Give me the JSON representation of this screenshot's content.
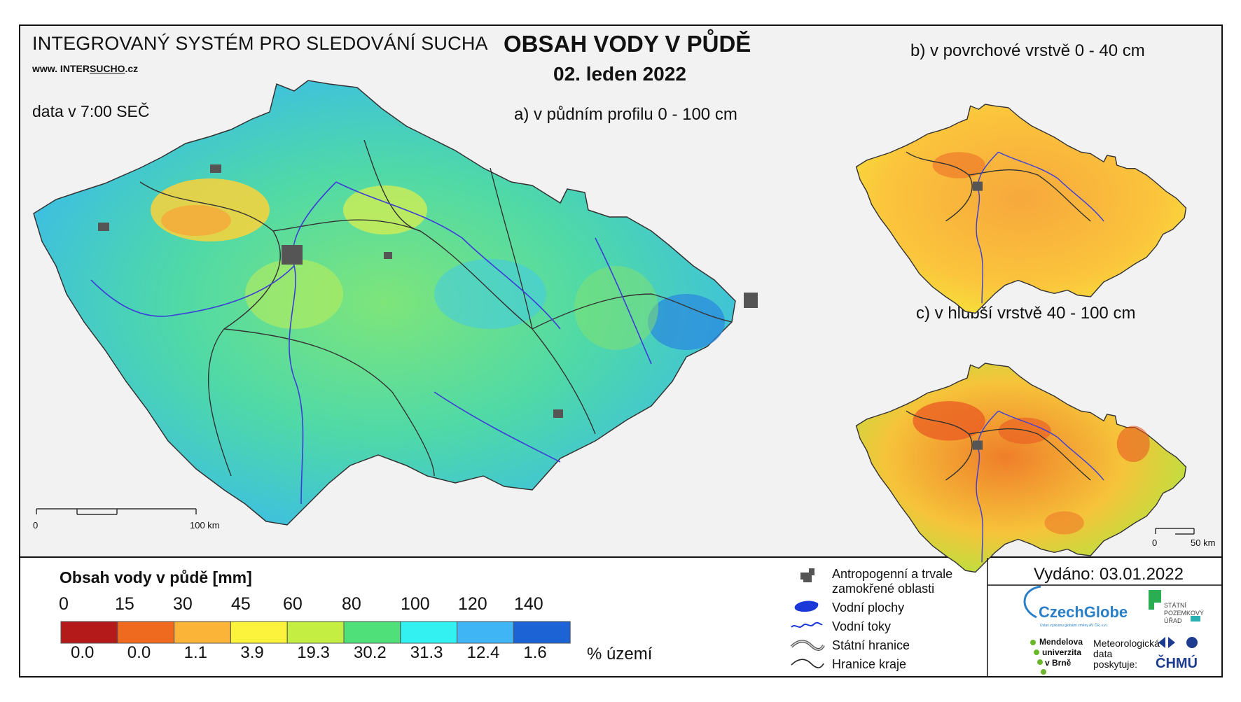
{
  "header": {
    "system": "INTEGROVANÝ SYSTÉM PRO SLEDOVÁNÍ SUCHA",
    "url_prefix": "www. INTER",
    "url_mid": "SUCHO",
    "url_suffix": ".cz",
    "data_time": "data v 7:00 SEČ",
    "title": "OBSAH VODY V PŮDĚ",
    "date": "02. leden 2022"
  },
  "panels": {
    "a": "a) v půdním profilu 0 - 100 cm",
    "b": "b) v povrchové vrstvě 0 - 40 cm",
    "c": "c) v hlubší vrstvě 40 - 100 cm"
  },
  "scale": {
    "main_zero": "0",
    "main_end": "100 km",
    "small_zero": "0",
    "small_end": "50 km"
  },
  "legend": {
    "title": "Obsah vody v půdě  [mm]",
    "ticks": [
      "0",
      "15",
      "30",
      "45",
      "60",
      "80",
      "100",
      "120",
      "140"
    ],
    "colors": [
      "#b41a1a",
      "#ef6a1f",
      "#fbb438",
      "#fcf43c",
      "#c4ef42",
      "#4fe07a",
      "#33f1f1",
      "#3fb5f6",
      "#1c63d6"
    ],
    "percentages": [
      "0.0",
      "0.0",
      "1.1",
      "3.9",
      "19.3",
      "30.2",
      "31.3",
      "12.4",
      "1.6"
    ],
    "percent_label": "% území"
  },
  "map_legend": {
    "anthropogenic": "Antropogenní a trvale",
    "anthropogenic2": "zamokřené oblasti",
    "water_bodies": "Vodní plochy",
    "rivers": "Vodní toky",
    "state_border": "Státní hranice",
    "region_border": "Hranice kraje"
  },
  "issued": "Vydáno: 03.01.2022",
  "logos": {
    "czechglobe": "CzechGlobe",
    "czechglobe_sub": "Ústav výzkumu globální změny AV ČR, v.v.i.",
    "spu1": "STÁTNÍ",
    "spu2": "POZEMKOVÝ",
    "spu3": "ÚŘAD",
    "mendel1": "Mendelova",
    "mendel2": "univerzita",
    "mendel3": "v Brně",
    "meteo1": "Meteorologická",
    "meteo2": "data",
    "meteo3": "poskytuje:",
    "chmu": "ČHMÚ"
  }
}
